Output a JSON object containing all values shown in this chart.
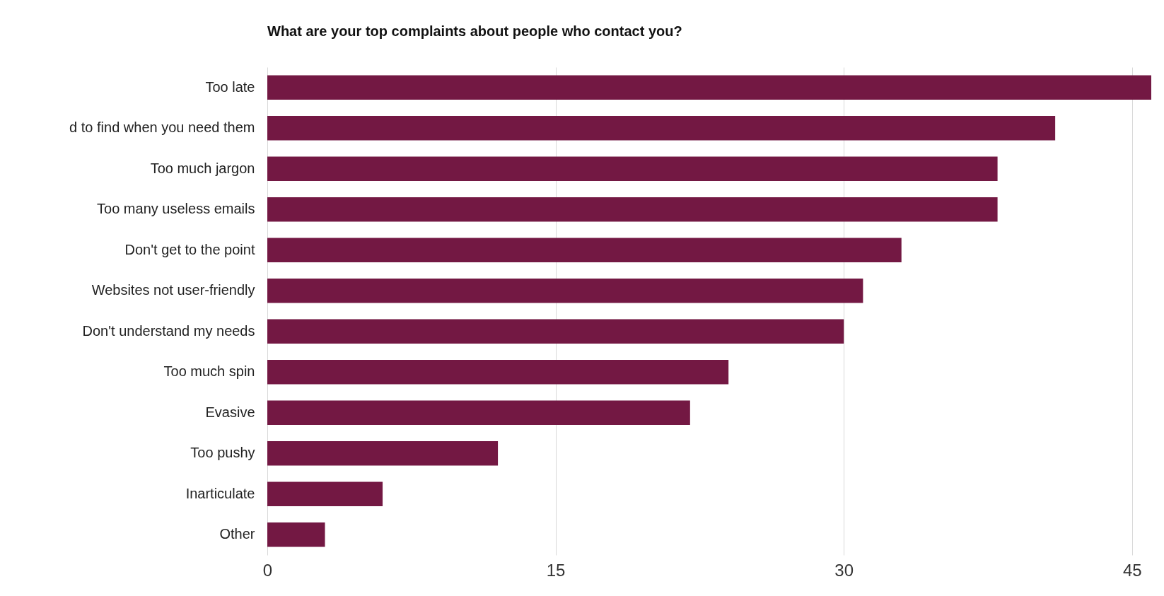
{
  "chart_data": {
    "type": "bar",
    "orientation": "horizontal",
    "title": "What are your top complaints about people who contact you?",
    "categories": [
      "Too late",
      "d to find when you need them",
      "Too much jargon",
      "Too many useless emails",
      "Don't get to the point",
      "Websites not user-friendly",
      "Don't understand my needs",
      "Too much spin",
      "Evasive",
      "Too pushy",
      "Inarticulate",
      "Other"
    ],
    "values": [
      46,
      41,
      38,
      38,
      33,
      31,
      30,
      24,
      22,
      12,
      6,
      3
    ],
    "color": "#731843",
    "xlim": [
      0,
      46
    ],
    "xticks": [
      0,
      15,
      30,
      45
    ],
    "grid": "x"
  }
}
